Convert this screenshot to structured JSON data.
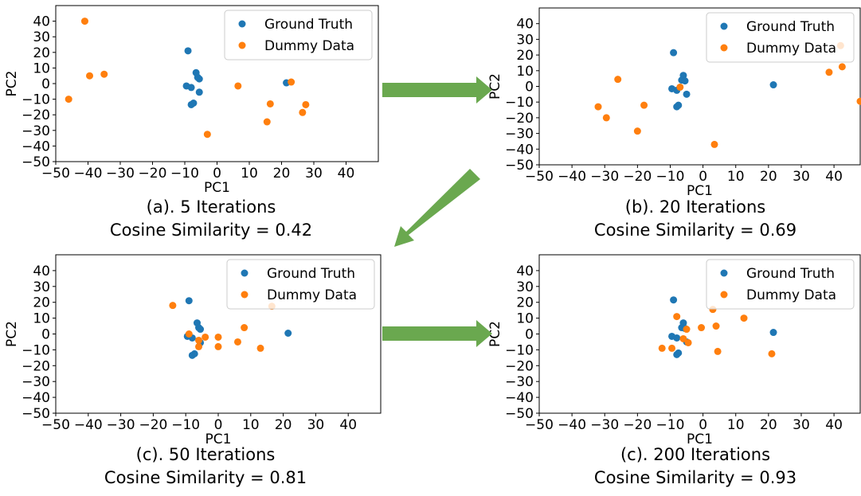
{
  "figure": {
    "colors": {
      "ground_truth": "#1f77b4",
      "dummy_data": "#ff7f0e",
      "arrow": "#6aa84f"
    },
    "arrows": [
      {
        "name": "arrow-a-to-b",
        "direction": "right"
      },
      {
        "name": "arrow-b-to-c",
        "direction": "down-left"
      },
      {
        "name": "arrow-c-to-d",
        "direction": "right"
      }
    ]
  },
  "chart_data": [
    {
      "type": "scatter",
      "caption": "(a). 5 Iterations",
      "similarity": "Cosine Similarity = 0.42",
      "xlabel": "PC1",
      "ylabel": "PC2",
      "xlim": [
        -50,
        50
      ],
      "ylim": [
        -50,
        50
      ],
      "xticks": [
        -50,
        -40,
        -30,
        -20,
        -10,
        0,
        10,
        20,
        30,
        40
      ],
      "yticks": [
        -50,
        -40,
        -30,
        -20,
        -10,
        0,
        10,
        20,
        30,
        40
      ],
      "grid": false,
      "legend_position": "upper right",
      "series": [
        {
          "name": "Ground Truth",
          "color": "#1f77b4",
          "points": [
            [
              -9,
              21
            ],
            [
              -6.5,
              7
            ],
            [
              -6,
              4
            ],
            [
              -5.5,
              3
            ],
            [
              -9.5,
              -1.5
            ],
            [
              -8,
              -2.5
            ],
            [
              -5.5,
              -5.5
            ],
            [
              -8,
              -13.5
            ],
            [
              -7.3,
              -12.5
            ],
            [
              21.5,
              0.5
            ]
          ]
        },
        {
          "name": "Dummy Data",
          "color": "#ff7f0e",
          "points": [
            [
              -41,
              40
            ],
            [
              -39.5,
              5
            ],
            [
              -35,
              6
            ],
            [
              -46,
              -10
            ],
            [
              -3,
              -32.5
            ],
            [
              6.5,
              -1.5
            ],
            [
              16.5,
              -13
            ],
            [
              15.5,
              -24.5
            ],
            [
              23,
              1
            ],
            [
              26.5,
              -18.5
            ],
            [
              27.5,
              -13.5
            ]
          ]
        }
      ]
    },
    {
      "type": "scatter",
      "caption": "(b). 20 Iterations",
      "similarity": "Cosine Similarity = 0.69",
      "xlabel": "PC1",
      "ylabel": "PC2",
      "xlim": [
        -50,
        48
      ],
      "ylim": [
        -50,
        50
      ],
      "xticks": [
        -50,
        -40,
        -30,
        -20,
        -10,
        0,
        10,
        20,
        30,
        40
      ],
      "yticks": [
        -50,
        -40,
        -30,
        -20,
        -10,
        0,
        10,
        20,
        30,
        40
      ],
      "grid": false,
      "legend_position": "upper right",
      "series": [
        {
          "name": "Ground Truth",
          "color": "#1f77b4",
          "points": [
            [
              -9,
              21.5
            ],
            [
              -6,
              7
            ],
            [
              -6.5,
              4
            ],
            [
              -5.5,
              3.5
            ],
            [
              -9.5,
              -1.5
            ],
            [
              -8,
              -2.5
            ],
            [
              -5,
              -5
            ],
            [
              -8,
              -13
            ],
            [
              -7.5,
              -12
            ],
            [
              21.5,
              1
            ]
          ]
        },
        {
          "name": "Dummy Data",
          "color": "#ff7f0e",
          "points": [
            [
              -26,
              4.5
            ],
            [
              -32,
              -13
            ],
            [
              -29.5,
              -20
            ],
            [
              -18,
              -12
            ],
            [
              -20,
              -28.5
            ],
            [
              -7,
              -0.5
            ],
            [
              3.5,
              -37
            ],
            [
              38.5,
              9
            ],
            [
              42.5,
              12.5
            ],
            [
              42,
              26
            ],
            [
              48,
              -9.5
            ]
          ]
        }
      ]
    },
    {
      "type": "scatter",
      "caption": "(c). 50 Iterations",
      "similarity": "Cosine Similarity = 0.81",
      "xlabel": "PC1",
      "ylabel": "PC2",
      "xlim": [
        -50,
        50
      ],
      "ylim": [
        -50,
        50
      ],
      "xticks": [
        -50,
        -40,
        -30,
        -20,
        -10,
        0,
        10,
        20,
        30,
        40
      ],
      "yticks": [
        -50,
        -40,
        -30,
        -20,
        -10,
        0,
        10,
        20,
        30,
        40
      ],
      "grid": false,
      "legend_position": "upper right",
      "series": [
        {
          "name": "Ground Truth",
          "color": "#1f77b4",
          "points": [
            [
              -9,
              21
            ],
            [
              -6.5,
              7
            ],
            [
              -6,
              4
            ],
            [
              -5.5,
              3
            ],
            [
              -9.5,
              -1.5
            ],
            [
              -8,
              -2.5
            ],
            [
              -5.5,
              -5.5
            ],
            [
              -8,
              -13.5
            ],
            [
              -7.3,
              -12.5
            ],
            [
              21.5,
              0.5
            ]
          ]
        },
        {
          "name": "Dummy Data",
          "color": "#ff7f0e",
          "points": [
            [
              -14,
              18
            ],
            [
              -9,
              0
            ],
            [
              -6,
              -4
            ],
            [
              -6,
              -8
            ],
            [
              -4,
              -2
            ],
            [
              0,
              -2
            ],
            [
              0,
              -8
            ],
            [
              6,
              -5
            ],
            [
              8,
              4
            ],
            [
              13,
              -9
            ],
            [
              16.5,
              17.5
            ]
          ]
        }
      ]
    },
    {
      "type": "scatter",
      "caption": "(c). 200 Iterations",
      "similarity": "Cosine Similarity = 0.93",
      "xlabel": "PC1",
      "ylabel": "PC2",
      "xlim": [
        -50,
        48
      ],
      "ylim": [
        -50,
        50
      ],
      "xticks": [
        -50,
        -40,
        -30,
        -20,
        -10,
        0,
        10,
        20,
        30,
        40
      ],
      "yticks": [
        -50,
        -40,
        -30,
        -20,
        -10,
        0,
        10,
        20,
        30,
        40
      ],
      "grid": false,
      "legend_position": "upper right",
      "series": [
        {
          "name": "Ground Truth",
          "color": "#1f77b4",
          "points": [
            [
              -9,
              21.5
            ],
            [
              -6,
              7
            ],
            [
              -6.5,
              4
            ],
            [
              -5.5,
              3.5
            ],
            [
              -9.5,
              -1.5
            ],
            [
              -8,
              -2.5
            ],
            [
              -5,
              -5
            ],
            [
              -8,
              -13
            ],
            [
              -7.5,
              -12
            ],
            [
              21.5,
              1
            ]
          ]
        },
        {
          "name": "Dummy Data",
          "color": "#ff7f0e",
          "points": [
            [
              -12.5,
              -9
            ],
            [
              -9.5,
              -9
            ],
            [
              -8,
              11
            ],
            [
              -6,
              -3
            ],
            [
              -5,
              3
            ],
            [
              -4.5,
              -5.5
            ],
            [
              -0.5,
              4
            ],
            [
              3,
              15.5
            ],
            [
              4,
              5
            ],
            [
              4.5,
              -11
            ],
            [
              12.5,
              10
            ],
            [
              21,
              -12.5
            ]
          ]
        }
      ]
    }
  ]
}
